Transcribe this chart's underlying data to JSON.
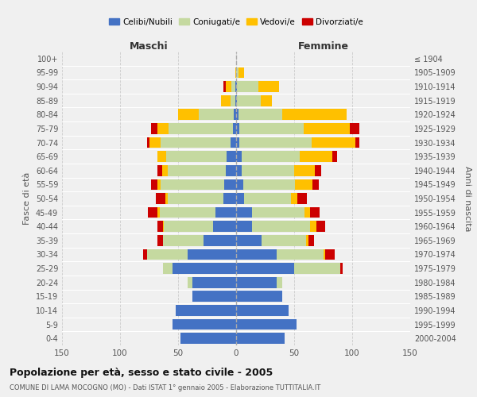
{
  "age_groups": [
    "0-4",
    "5-9",
    "10-14",
    "15-19",
    "20-24",
    "25-29",
    "30-34",
    "35-39",
    "40-44",
    "45-49",
    "50-54",
    "55-59",
    "60-64",
    "65-69",
    "70-74",
    "75-79",
    "80-84",
    "85-89",
    "90-94",
    "95-99",
    "100+"
  ],
  "birth_years": [
    "2000-2004",
    "1995-1999",
    "1990-1994",
    "1985-1989",
    "1980-1984",
    "1975-1979",
    "1970-1974",
    "1965-1969",
    "1960-1964",
    "1955-1959",
    "1950-1954",
    "1945-1949",
    "1940-1944",
    "1935-1939",
    "1930-1934",
    "1925-1929",
    "1920-1924",
    "1915-1919",
    "1910-1914",
    "1905-1909",
    "≤ 1904"
  ],
  "male_celibe": [
    48,
    55,
    52,
    38,
    38,
    55,
    42,
    28,
    20,
    18,
    11,
    10,
    9,
    8,
    5,
    3,
    2,
    1,
    1,
    0,
    0
  ],
  "male_coniugato": [
    0,
    0,
    0,
    0,
    4,
    8,
    35,
    35,
    42,
    48,
    48,
    55,
    50,
    52,
    60,
    55,
    30,
    4,
    3,
    0,
    0
  ],
  "male_vedovo": [
    0,
    0,
    0,
    0,
    0,
    0,
    0,
    0,
    1,
    2,
    2,
    3,
    5,
    8,
    10,
    10,
    18,
    8,
    5,
    1,
    0
  ],
  "male_divorziato": [
    0,
    0,
    0,
    0,
    0,
    0,
    3,
    5,
    5,
    8,
    8,
    5,
    4,
    0,
    2,
    5,
    0,
    0,
    2,
    0,
    0
  ],
  "female_nubile": [
    42,
    52,
    45,
    40,
    35,
    50,
    35,
    22,
    14,
    14,
    7,
    6,
    5,
    5,
    3,
    3,
    2,
    1,
    1,
    0,
    0
  ],
  "female_coniugata": [
    0,
    0,
    0,
    0,
    5,
    40,
    40,
    38,
    50,
    45,
    40,
    45,
    45,
    50,
    62,
    55,
    38,
    20,
    18,
    2,
    0
  ],
  "female_vedova": [
    0,
    0,
    0,
    0,
    0,
    0,
    2,
    2,
    5,
    5,
    6,
    15,
    18,
    28,
    38,
    40,
    55,
    10,
    18,
    5,
    0
  ],
  "female_divorziata": [
    0,
    0,
    0,
    0,
    0,
    2,
    8,
    5,
    8,
    8,
    8,
    5,
    5,
    4,
    3,
    8,
    0,
    0,
    0,
    0,
    0
  ],
  "color_celibe": "#4472c4",
  "color_coniugato": "#c5d9a0",
  "color_vedovo": "#ffc000",
  "color_divorziato": "#cc0000",
  "bg_color": "#f0f0f0",
  "title": "Popolazione per età, sesso e stato civile - 2005",
  "subtitle": "COMUNE DI LAMA MOCOGNO (MO) - Dati ISTAT 1° gennaio 2005 - Elaborazione TUTTITALIA.IT",
  "xlabel_left": "Maschi",
  "xlabel_right": "Femmine",
  "ylabel_left": "Fasce di età",
  "ylabel_right": "Anni di nascita",
  "xmax": 150,
  "legend_labels": [
    "Celibi/Nubili",
    "Coniugati/e",
    "Vedovi/e",
    "Divorziati/e"
  ]
}
